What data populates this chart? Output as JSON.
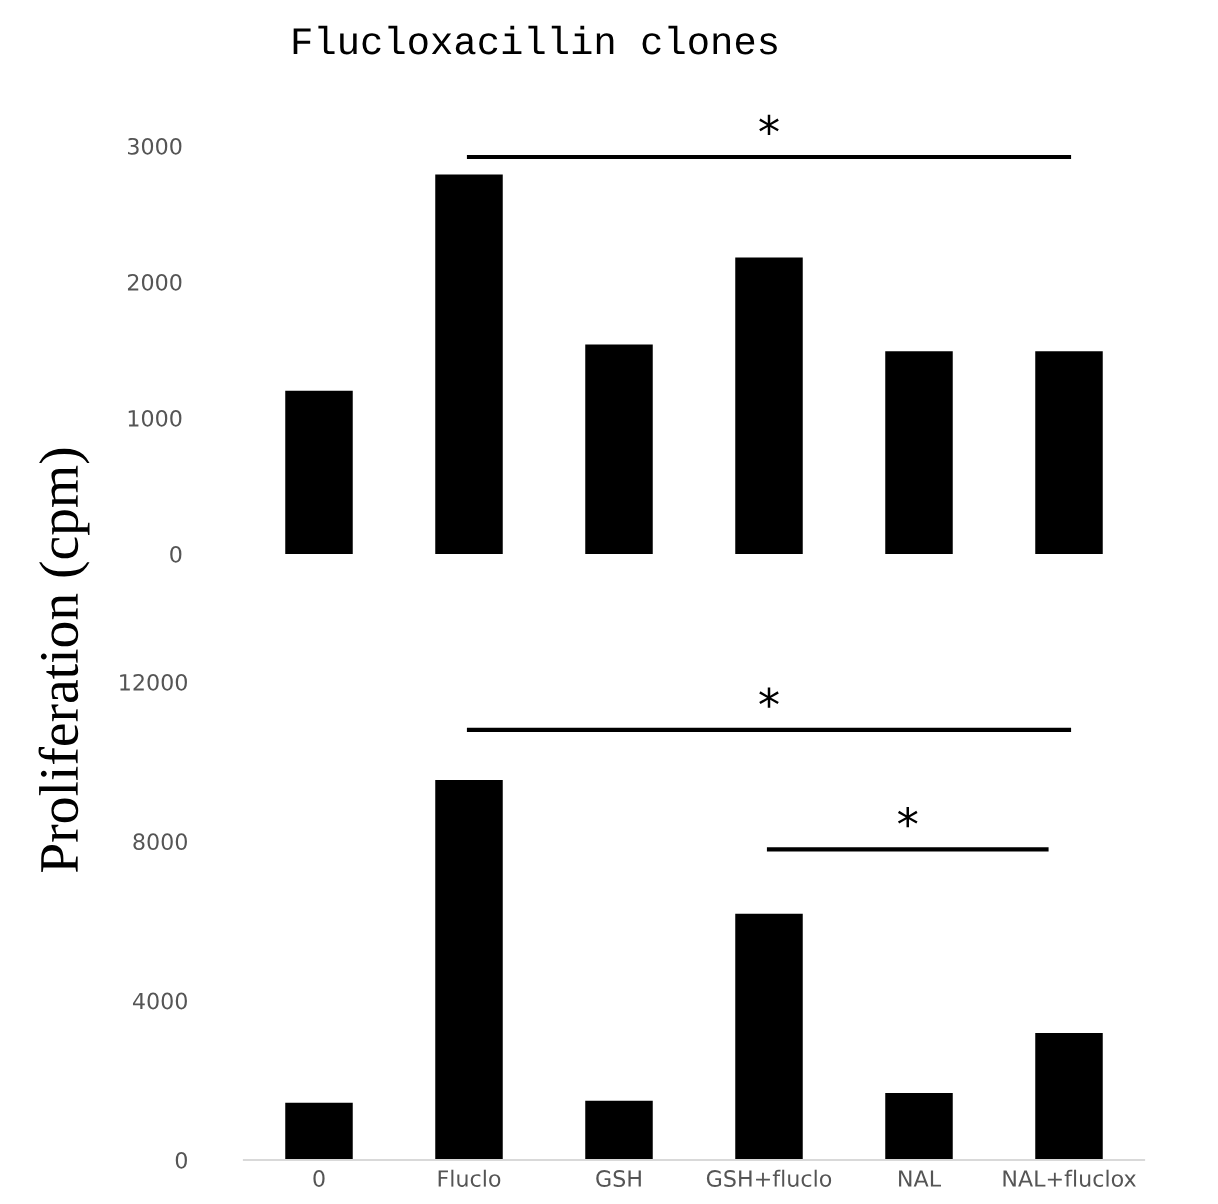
{
  "chart_data": [
    {
      "type": "bar",
      "title": "Flucloxacillin clones",
      "ylabel": "Proliferation (cpm)",
      "categories": [
        null,
        null,
        null,
        null,
        null,
        null
      ],
      "values": [
        1200,
        2790,
        1540,
        2180,
        1490,
        1490
      ],
      "color": "#000000",
      "ylim": [
        0,
        3000
      ],
      "yticks": [
        0,
        1000,
        2000,
        3000
      ],
      "annotations": [
        "*"
      ]
    },
    {
      "type": "bar",
      "categories": [
        "0",
        "Fluclo",
        "GSH",
        "GSH+fluclo",
        "NAL",
        "NAL+fluclox"
      ],
      "values": [
        1440,
        9540,
        1490,
        6180,
        1680,
        3190
      ],
      "color": "#000000",
      "ylim": [
        0,
        12000
      ],
      "yticks": [
        0,
        4000,
        8000,
        12000
      ],
      "annotations": [
        "*",
        "*"
      ]
    }
  ]
}
